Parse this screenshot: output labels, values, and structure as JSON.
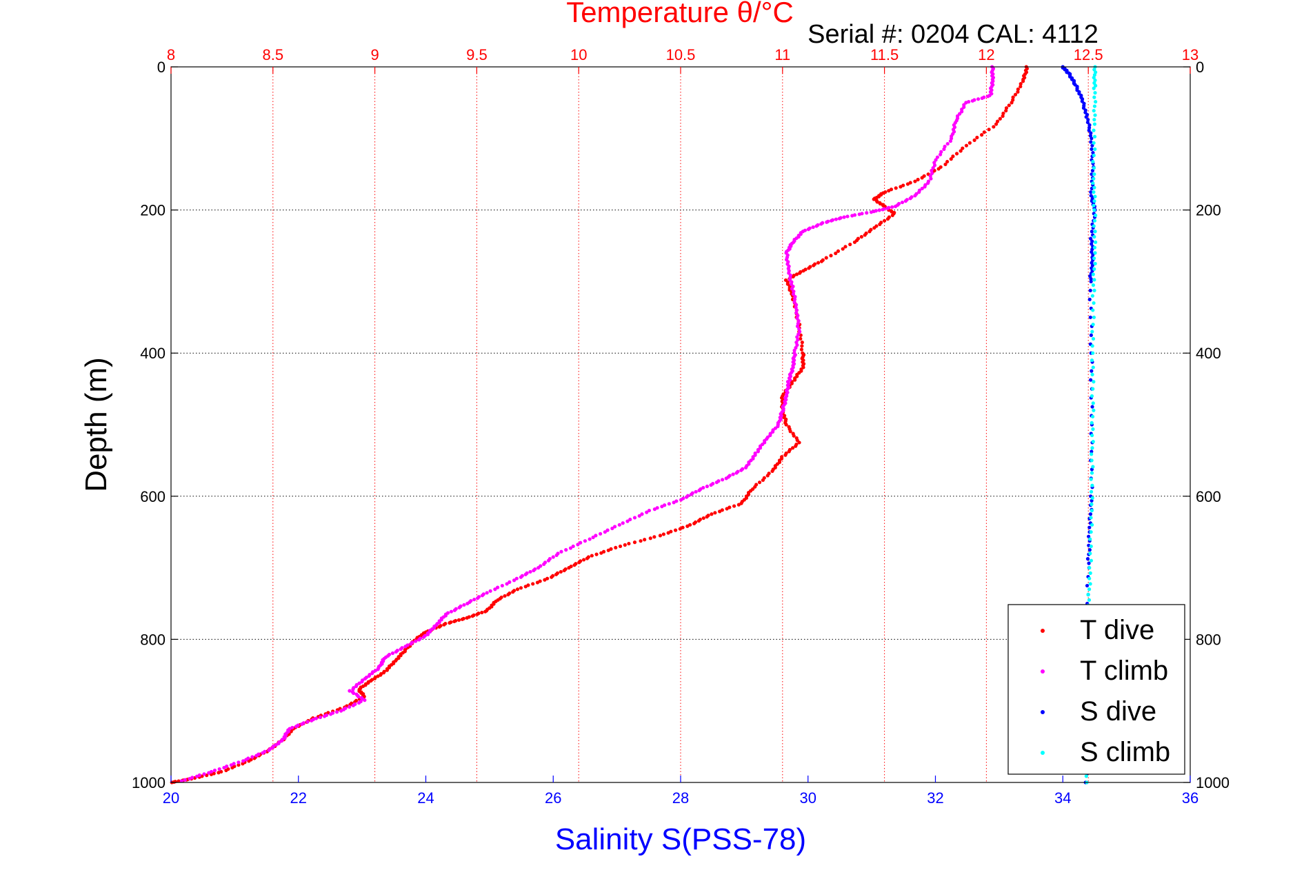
{
  "chart_data": {
    "type": "scatter",
    "title": "Temperature θ/°C",
    "subtitle": "Serial #: 0204  CAL: 4112",
    "ylabel": "Depth (m)",
    "xlabel": "Salinity S(PSS-78)",
    "temperature_axis": {
      "label": "Temperature θ/°C",
      "range": [
        8,
        13
      ],
      "ticks": [
        "8",
        "8.5",
        "9",
        "9.5",
        "10",
        "10.5",
        "11",
        "11.5",
        "12",
        "12.5",
        "13"
      ],
      "color": "#ff0000"
    },
    "salinity_axis": {
      "label": "Salinity S(PSS-78)",
      "range": [
        20,
        36
      ],
      "ticks": [
        "20",
        "22",
        "24",
        "26",
        "28",
        "30",
        "32",
        "34",
        "36"
      ],
      "color": "#0000ff"
    },
    "depth_axis": {
      "label": "Depth (m)",
      "range": [
        0,
        1000
      ],
      "reversed": true,
      "ticks": [
        "0",
        "200",
        "400",
        "600",
        "800",
        "1000"
      ]
    },
    "grid": true,
    "legend_position": "bottom-right",
    "series": [
      {
        "name": "T dive",
        "axis": "temperature",
        "color": "#ff0000",
        "points": [
          [
            12.2,
            0
          ],
          [
            12.18,
            20
          ],
          [
            12.12,
            50
          ],
          [
            12.05,
            80
          ],
          [
            11.9,
            110
          ],
          [
            11.78,
            140
          ],
          [
            11.65,
            160
          ],
          [
            11.5,
            175
          ],
          [
            11.45,
            185
          ],
          [
            11.5,
            195
          ],
          [
            11.55,
            205
          ],
          [
            11.45,
            225
          ],
          [
            11.35,
            245
          ],
          [
            11.2,
            270
          ],
          [
            11.1,
            285
          ],
          [
            11.02,
            298
          ],
          [
            11.05,
            320
          ],
          [
            11.08,
            360
          ],
          [
            11.1,
            400
          ],
          [
            11.1,
            420
          ],
          [
            11.05,
            440
          ],
          [
            11.0,
            460
          ],
          [
            11.0,
            480
          ],
          [
            11.02,
            500
          ],
          [
            11.08,
            525
          ],
          [
            11.0,
            545
          ],
          [
            10.95,
            565
          ],
          [
            10.85,
            590
          ],
          [
            10.8,
            610
          ],
          [
            10.65,
            625
          ],
          [
            10.55,
            640
          ],
          [
            10.4,
            655
          ],
          [
            10.2,
            670
          ],
          [
            10.05,
            685
          ],
          [
            9.95,
            700
          ],
          [
            9.85,
            715
          ],
          [
            9.7,
            730
          ],
          [
            9.6,
            745
          ],
          [
            9.55,
            760
          ],
          [
            9.45,
            770
          ],
          [
            9.35,
            778
          ],
          [
            9.25,
            790
          ],
          [
            9.2,
            800
          ],
          [
            9.15,
            815
          ],
          [
            9.1,
            830
          ],
          [
            9.05,
            845
          ],
          [
            8.98,
            858
          ],
          [
            8.92,
            870
          ],
          [
            8.95,
            880
          ],
          [
            8.85,
            895
          ],
          [
            8.7,
            910
          ],
          [
            8.6,
            925
          ],
          [
            8.55,
            940
          ],
          [
            8.48,
            955
          ],
          [
            8.38,
            970
          ],
          [
            8.25,
            985
          ],
          [
            8.1,
            995
          ],
          [
            8.0,
            1000
          ]
        ]
      },
      {
        "name": "T climb",
        "axis": "temperature",
        "color": "#ff00ff",
        "points": [
          [
            12.03,
            0
          ],
          [
            12.03,
            20
          ],
          [
            12.02,
            40
          ],
          [
            11.9,
            50
          ],
          [
            11.85,
            75
          ],
          [
            11.83,
            100
          ],
          [
            11.75,
            130
          ],
          [
            11.72,
            160
          ],
          [
            11.65,
            180
          ],
          [
            11.55,
            195
          ],
          [
            11.45,
            202
          ],
          [
            11.3,
            210
          ],
          [
            11.2,
            218
          ],
          [
            11.1,
            230
          ],
          [
            11.05,
            245
          ],
          [
            11.02,
            260
          ],
          [
            11.03,
            285
          ],
          [
            11.05,
            310
          ],
          [
            11.07,
            340
          ],
          [
            11.08,
            370
          ],
          [
            11.06,
            400
          ],
          [
            11.05,
            420
          ],
          [
            11.03,
            440
          ],
          [
            11.02,
            460
          ],
          [
            11.0,
            480
          ],
          [
            10.98,
            500
          ],
          [
            10.92,
            520
          ],
          [
            10.87,
            540
          ],
          [
            10.82,
            560
          ],
          [
            10.72,
            575
          ],
          [
            10.6,
            590
          ],
          [
            10.5,
            605
          ],
          [
            10.35,
            620
          ],
          [
            10.2,
            640
          ],
          [
            10.05,
            660
          ],
          [
            9.9,
            680
          ],
          [
            9.8,
            700
          ],
          [
            9.7,
            715
          ],
          [
            9.55,
            735
          ],
          [
            9.45,
            750
          ],
          [
            9.35,
            765
          ],
          [
            9.3,
            780
          ],
          [
            9.25,
            795
          ],
          [
            9.15,
            810
          ],
          [
            9.05,
            825
          ],
          [
            9.02,
            840
          ],
          [
            8.95,
            855
          ],
          [
            8.88,
            872
          ],
          [
            8.95,
            885
          ],
          [
            8.83,
            900
          ],
          [
            8.7,
            912
          ],
          [
            8.58,
            925
          ],
          [
            8.55,
            940
          ],
          [
            8.48,
            955
          ],
          [
            8.35,
            970
          ],
          [
            8.2,
            985
          ],
          [
            8.05,
            998
          ]
        ]
      },
      {
        "name": "S dive",
        "axis": "salinity",
        "color": "#0000ff",
        "points": [
          [
            34.0,
            0
          ],
          [
            34.1,
            10
          ],
          [
            34.2,
            25
          ],
          [
            34.3,
            45
          ],
          [
            34.38,
            70
          ],
          [
            34.45,
            100
          ],
          [
            34.47,
            140
          ],
          [
            34.45,
            180
          ],
          [
            34.5,
            200
          ],
          [
            34.45,
            240
          ],
          [
            34.47,
            270
          ],
          [
            34.43,
            300
          ],
          [
            34.45,
            400
          ],
          [
            34.45,
            500
          ],
          [
            34.45,
            600
          ],
          [
            34.42,
            650
          ],
          [
            34.4,
            700
          ],
          [
            34.38,
            800
          ],
          [
            34.36,
            900
          ],
          [
            34.37,
            1000
          ]
        ]
      },
      {
        "name": "S climb",
        "axis": "salinity",
        "color": "#00ffff",
        "points": [
          [
            34.5,
            0
          ],
          [
            34.5,
            30
          ],
          [
            34.5,
            80
          ],
          [
            34.48,
            150
          ],
          [
            34.5,
            200
          ],
          [
            34.5,
            260
          ],
          [
            34.48,
            320
          ],
          [
            34.47,
            400
          ],
          [
            34.47,
            480
          ],
          [
            34.46,
            550
          ],
          [
            34.45,
            620
          ],
          [
            34.43,
            700
          ],
          [
            34.4,
            760
          ],
          [
            34.38,
            850
          ],
          [
            34.36,
            930
          ],
          [
            34.37,
            1000
          ]
        ]
      }
    ]
  }
}
